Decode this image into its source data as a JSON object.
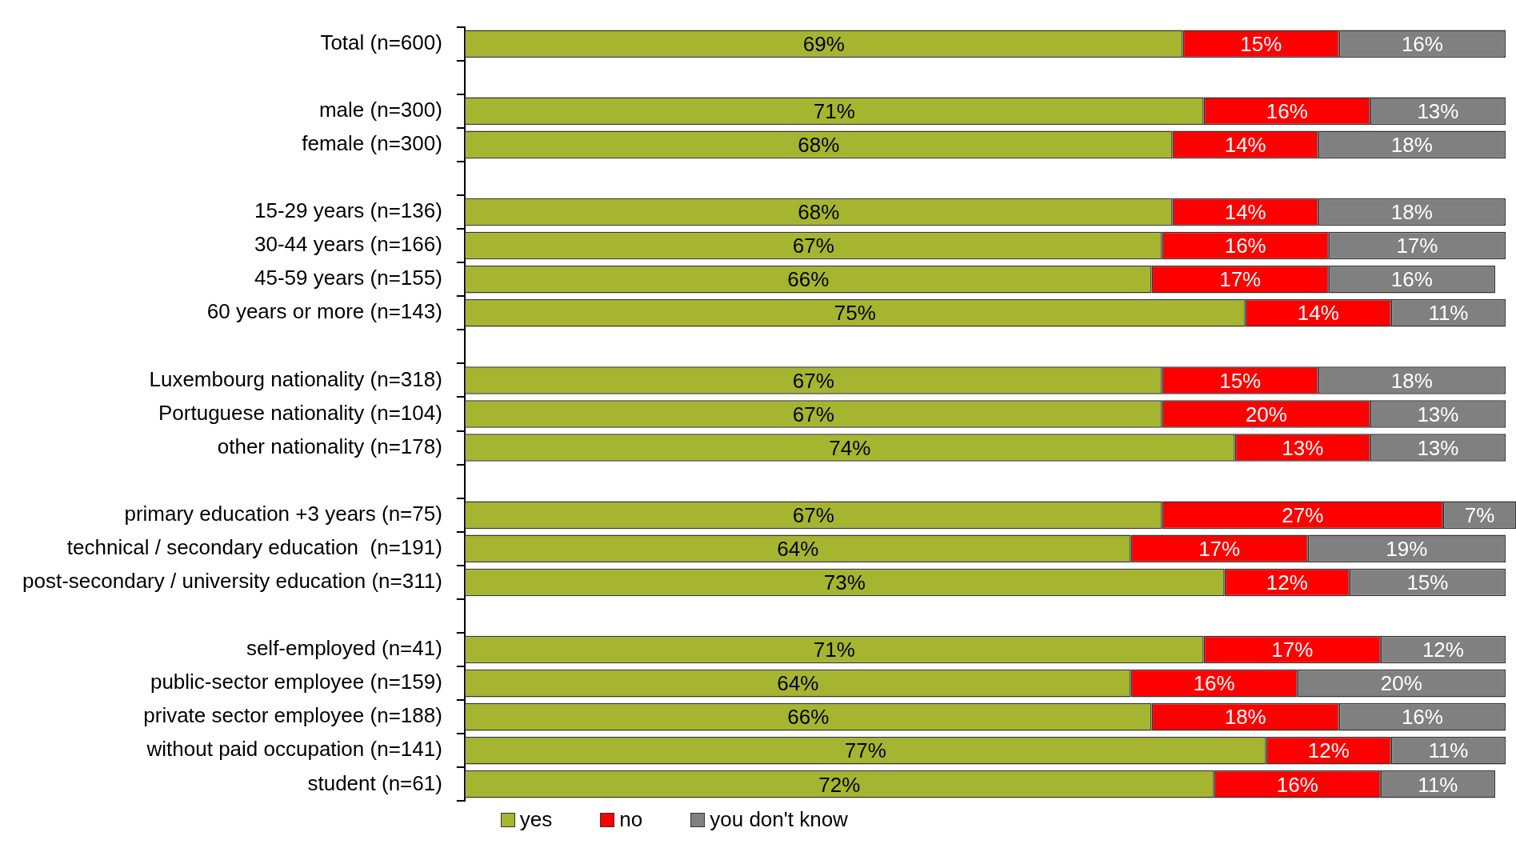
{
  "chart_data": {
    "type": "bar",
    "orientation": "horizontal",
    "stacked": true,
    "legend": "bottom left",
    "grid": false,
    "tick_labels": "y",
    "categories": [
      "Total (n=600)",
      null,
      "male (n=300)",
      "female (n=300)",
      null,
      "15-29 years (n=136)",
      "30-44 years (n=166)",
      "45-59 years (n=155)",
      "60 years or more (n=143)",
      null,
      "Luxembourg nationality (n=318)",
      "Portuguese nationality (n=104)",
      "other nationality (n=178)",
      null,
      "primary education +3 years (n=75)",
      "technical / secondary education  (n=191)",
      "post-secondary / university education (n=311)",
      null,
      "self-employed (n=41)",
      "public-sector employee (n=159)",
      "private sector employee (n=188)",
      "without paid occupation (n=141)",
      "student (n=61)"
    ],
    "series": [
      {
        "name": "yes",
        "color": "#a5b52f",
        "values": [
          69,
          null,
          71,
          68,
          null,
          68,
          67,
          66,
          75,
          null,
          67,
          67,
          74,
          null,
          67,
          64,
          73,
          null,
          71,
          64,
          66,
          77,
          72
        ],
        "value_labels": [
          "69%",
          null,
          "71%",
          "68%",
          null,
          "68%",
          "67%",
          "66%",
          "75%",
          null,
          "67%",
          "67%",
          "74%",
          null,
          "67%",
          "64%",
          "73%",
          null,
          "71%",
          "64%",
          "66%",
          "77%",
          "72%"
        ]
      },
      {
        "name": "no",
        "color": "#ff0000",
        "values": [
          15,
          null,
          16,
          14,
          null,
          14,
          16,
          17,
          14,
          null,
          15,
          20,
          13,
          null,
          27,
          17,
          12,
          null,
          17,
          16,
          18,
          12,
          16
        ],
        "value_labels": [
          "15%",
          null,
          "16%",
          "14%",
          null,
          "14%",
          "16%",
          "17%",
          "14%",
          null,
          "15%",
          "20%",
          "13%",
          null,
          "27%",
          "17%",
          "12%",
          null,
          "17%",
          "16%",
          "18%",
          "12%",
          "16%"
        ]
      },
      {
        "name": "you don't know",
        "color": "#808080",
        "values": [
          16,
          null,
          13,
          18,
          null,
          18,
          17,
          16,
          11,
          null,
          18,
          13,
          13,
          null,
          7,
          19,
          15,
          null,
          12,
          20,
          16,
          11,
          11
        ],
        "value_labels": [
          "16%",
          null,
          "13%",
          "18%",
          null,
          "18%",
          "17%",
          "16%",
          "11%",
          null,
          "18%",
          "13%",
          "13%",
          null,
          "7%",
          "19%",
          "15%",
          null,
          "12%",
          "20%",
          "16%",
          "11%",
          "11%"
        ]
      }
    ]
  }
}
